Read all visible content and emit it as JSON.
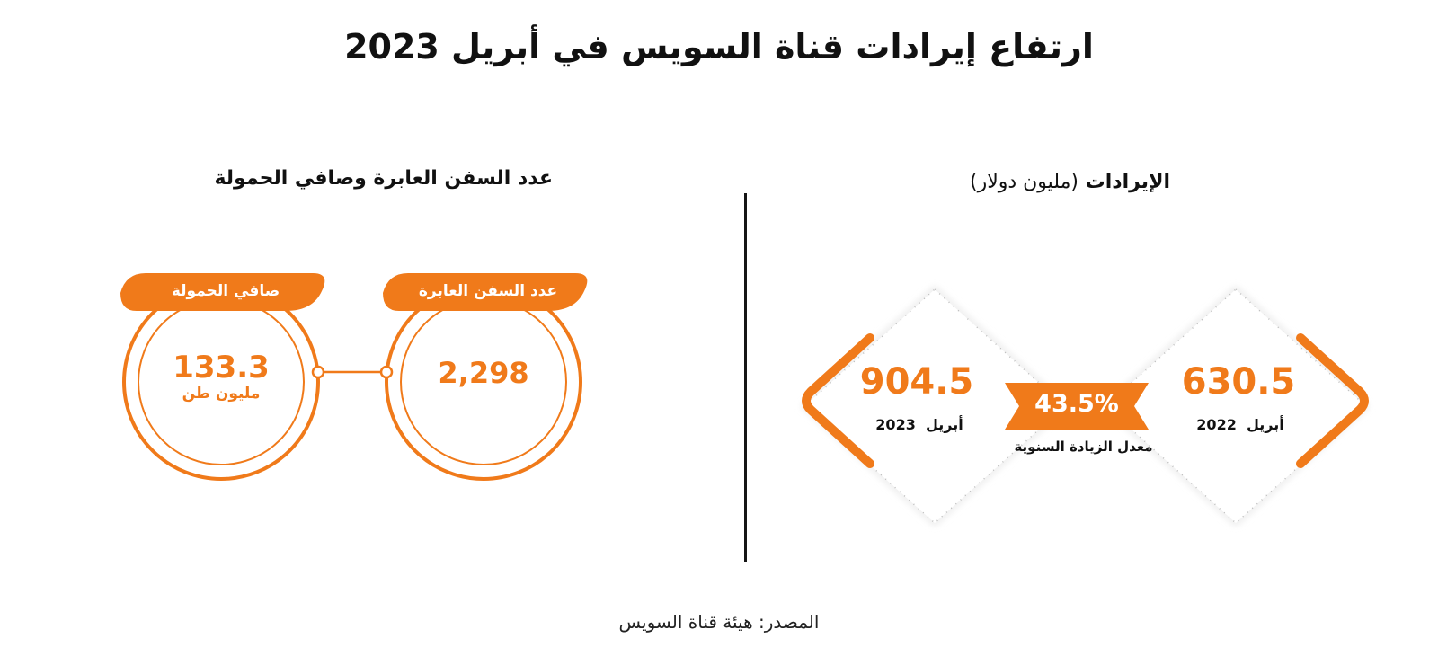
{
  "title": "ارتفاع إيرادات قناة السويس في أبريل 2023",
  "revenue_section": {
    "heading_bold": "الإيرادات",
    "heading_unit": "(مليون دولار)",
    "april_2022": {
      "value": "630.5",
      "month": "أبريل",
      "year": "2022"
    },
    "april_2023": {
      "value": "904.5",
      "month": "أبريل",
      "year": "2023"
    },
    "growth": {
      "value": "43.5%",
      "label": "معدل الزيادة السنوية"
    }
  },
  "ships_section": {
    "heading": "عدد السفن العابرة وصافي الحمولة",
    "ships": {
      "tab_label": "عدد السفن العابرة",
      "value": "2,298"
    },
    "tonnage": {
      "tab_label": "صافي الحمولة",
      "value": "133.3",
      "unit": "مليون طن"
    }
  },
  "source": "المصدر: هيئة قناة السويس",
  "colors": {
    "accent": "#f07a1a",
    "text": "#111111",
    "shadow": "#d9d9d9"
  },
  "chart_data": {
    "type": "table",
    "title": "ارتفاع إيرادات قناة السويس في أبريل 2023",
    "revenue_million_usd": [
      {
        "period": "أبريل 2022",
        "value": 630.5
      },
      {
        "period": "أبريل 2023",
        "value": 904.5
      }
    ],
    "annual_growth_percent": 43.5,
    "ships_transited": 2298,
    "net_tonnage_million_tons": 133.3
  }
}
